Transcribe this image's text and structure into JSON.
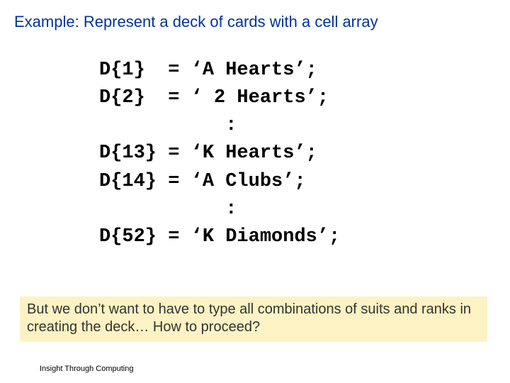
{
  "colors": {
    "title": "#003399",
    "code": "#000000",
    "note_bg": "#fdf2c3",
    "note_text": "#333333",
    "footer": "#000000",
    "background": "#ffffff"
  },
  "title": "Example: Represent a deck of cards with a cell array",
  "code": {
    "lines": [
      "D{1}  = ‘A Hearts’;",
      "D{2}  = ‘ 2 Hearts’;",
      "           :",
      "D{13} = ‘K Hearts’;",
      "D{14} = ‘A Clubs’;",
      "           :",
      "D{52} = ‘K Diamonds’;"
    ]
  },
  "note": "But we don’t want to have to type all combinations of suits and ranks in creating the deck… How to proceed?",
  "footer": "Insight Through Computing"
}
